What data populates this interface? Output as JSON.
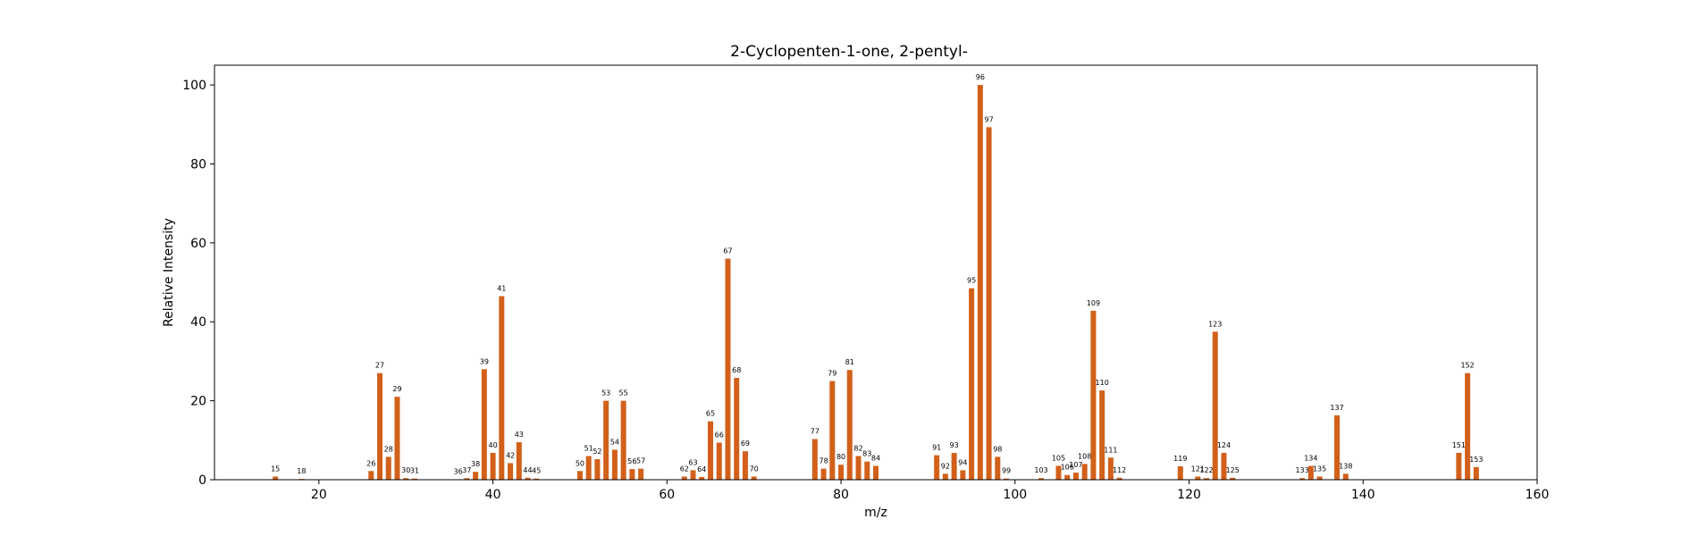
{
  "chart_data": {
    "type": "bar",
    "title": "2-Cyclopenten-1-one, 2-pentyl-",
    "xlabel": "m/z",
    "ylabel": "Relative Intensity",
    "xlim": [
      8,
      160
    ],
    "ylim": [
      0,
      105
    ],
    "xticks": [
      20,
      40,
      60,
      80,
      100,
      120,
      140,
      160
    ],
    "yticks": [
      0,
      20,
      40,
      60,
      80,
      100
    ],
    "grid": false,
    "bar_color": "#d2601a",
    "peaks": [
      {
        "mz": 15,
        "intensity": 0.8
      },
      {
        "mz": 18,
        "intensity": 0.2
      },
      {
        "mz": 26,
        "intensity": 2.2
      },
      {
        "mz": 27,
        "intensity": 27.0
      },
      {
        "mz": 28,
        "intensity": 5.8
      },
      {
        "mz": 29,
        "intensity": 21.0
      },
      {
        "mz": 30,
        "intensity": 0.4
      },
      {
        "mz": 31,
        "intensity": 0.3
      },
      {
        "mz": 36,
        "intensity": 0.1
      },
      {
        "mz": 37,
        "intensity": 0.4
      },
      {
        "mz": 38,
        "intensity": 2.0
      },
      {
        "mz": 39,
        "intensity": 28.0
      },
      {
        "mz": 40,
        "intensity": 6.8
      },
      {
        "mz": 41,
        "intensity": 46.5
      },
      {
        "mz": 42,
        "intensity": 4.2
      },
      {
        "mz": 43,
        "intensity": 9.5
      },
      {
        "mz": 44,
        "intensity": 0.5
      },
      {
        "mz": 45,
        "intensity": 0.3
      },
      {
        "mz": 50,
        "intensity": 2.2
      },
      {
        "mz": 51,
        "intensity": 6.0
      },
      {
        "mz": 52,
        "intensity": 5.2
      },
      {
        "mz": 53,
        "intensity": 20.0
      },
      {
        "mz": 54,
        "intensity": 7.6
      },
      {
        "mz": 55,
        "intensity": 20.0
      },
      {
        "mz": 56,
        "intensity": 2.7
      },
      {
        "mz": 57,
        "intensity": 2.8
      },
      {
        "mz": 62,
        "intensity": 0.8
      },
      {
        "mz": 63,
        "intensity": 2.4
      },
      {
        "mz": 64,
        "intensity": 0.7
      },
      {
        "mz": 65,
        "intensity": 14.8
      },
      {
        "mz": 66,
        "intensity": 9.4
      },
      {
        "mz": 67,
        "intensity": 56.0
      },
      {
        "mz": 68,
        "intensity": 25.8
      },
      {
        "mz": 69,
        "intensity": 7.2
      },
      {
        "mz": 70,
        "intensity": 0.8
      },
      {
        "mz": 77,
        "intensity": 10.3
      },
      {
        "mz": 78,
        "intensity": 2.8
      },
      {
        "mz": 79,
        "intensity": 25.0
      },
      {
        "mz": 80,
        "intensity": 3.8
      },
      {
        "mz": 81,
        "intensity": 27.8
      },
      {
        "mz": 82,
        "intensity": 6.0
      },
      {
        "mz": 83,
        "intensity": 4.6
      },
      {
        "mz": 84,
        "intensity": 3.5
      },
      {
        "mz": 91,
        "intensity": 6.2
      },
      {
        "mz": 92,
        "intensity": 1.5
      },
      {
        "mz": 93,
        "intensity": 6.8
      },
      {
        "mz": 94,
        "intensity": 2.4
      },
      {
        "mz": 95,
        "intensity": 48.5
      },
      {
        "mz": 96,
        "intensity": 100.0
      },
      {
        "mz": 97,
        "intensity": 89.3
      },
      {
        "mz": 98,
        "intensity": 5.8
      },
      {
        "mz": 99,
        "intensity": 0.3
      },
      {
        "mz": 103,
        "intensity": 0.4
      },
      {
        "mz": 105,
        "intensity": 3.5
      },
      {
        "mz": 106,
        "intensity": 1.2
      },
      {
        "mz": 107,
        "intensity": 1.8
      },
      {
        "mz": 108,
        "intensity": 4.0
      },
      {
        "mz": 109,
        "intensity": 42.8
      },
      {
        "mz": 110,
        "intensity": 22.6
      },
      {
        "mz": 111,
        "intensity": 5.6
      },
      {
        "mz": 112,
        "intensity": 0.5
      },
      {
        "mz": 119,
        "intensity": 3.4
      },
      {
        "mz": 121,
        "intensity": 0.8
      },
      {
        "mz": 122,
        "intensity": 0.4
      },
      {
        "mz": 123,
        "intensity": 37.5
      },
      {
        "mz": 124,
        "intensity": 6.8
      },
      {
        "mz": 125,
        "intensity": 0.5
      },
      {
        "mz": 133,
        "intensity": 0.4
      },
      {
        "mz": 134,
        "intensity": 3.5
      },
      {
        "mz": 135,
        "intensity": 0.8
      },
      {
        "mz": 137,
        "intensity": 16.3
      },
      {
        "mz": 138,
        "intensity": 1.5
      },
      {
        "mz": 151,
        "intensity": 6.8
      },
      {
        "mz": 152,
        "intensity": 27.0
      },
      {
        "mz": 153,
        "intensity": 3.2
      }
    ]
  }
}
